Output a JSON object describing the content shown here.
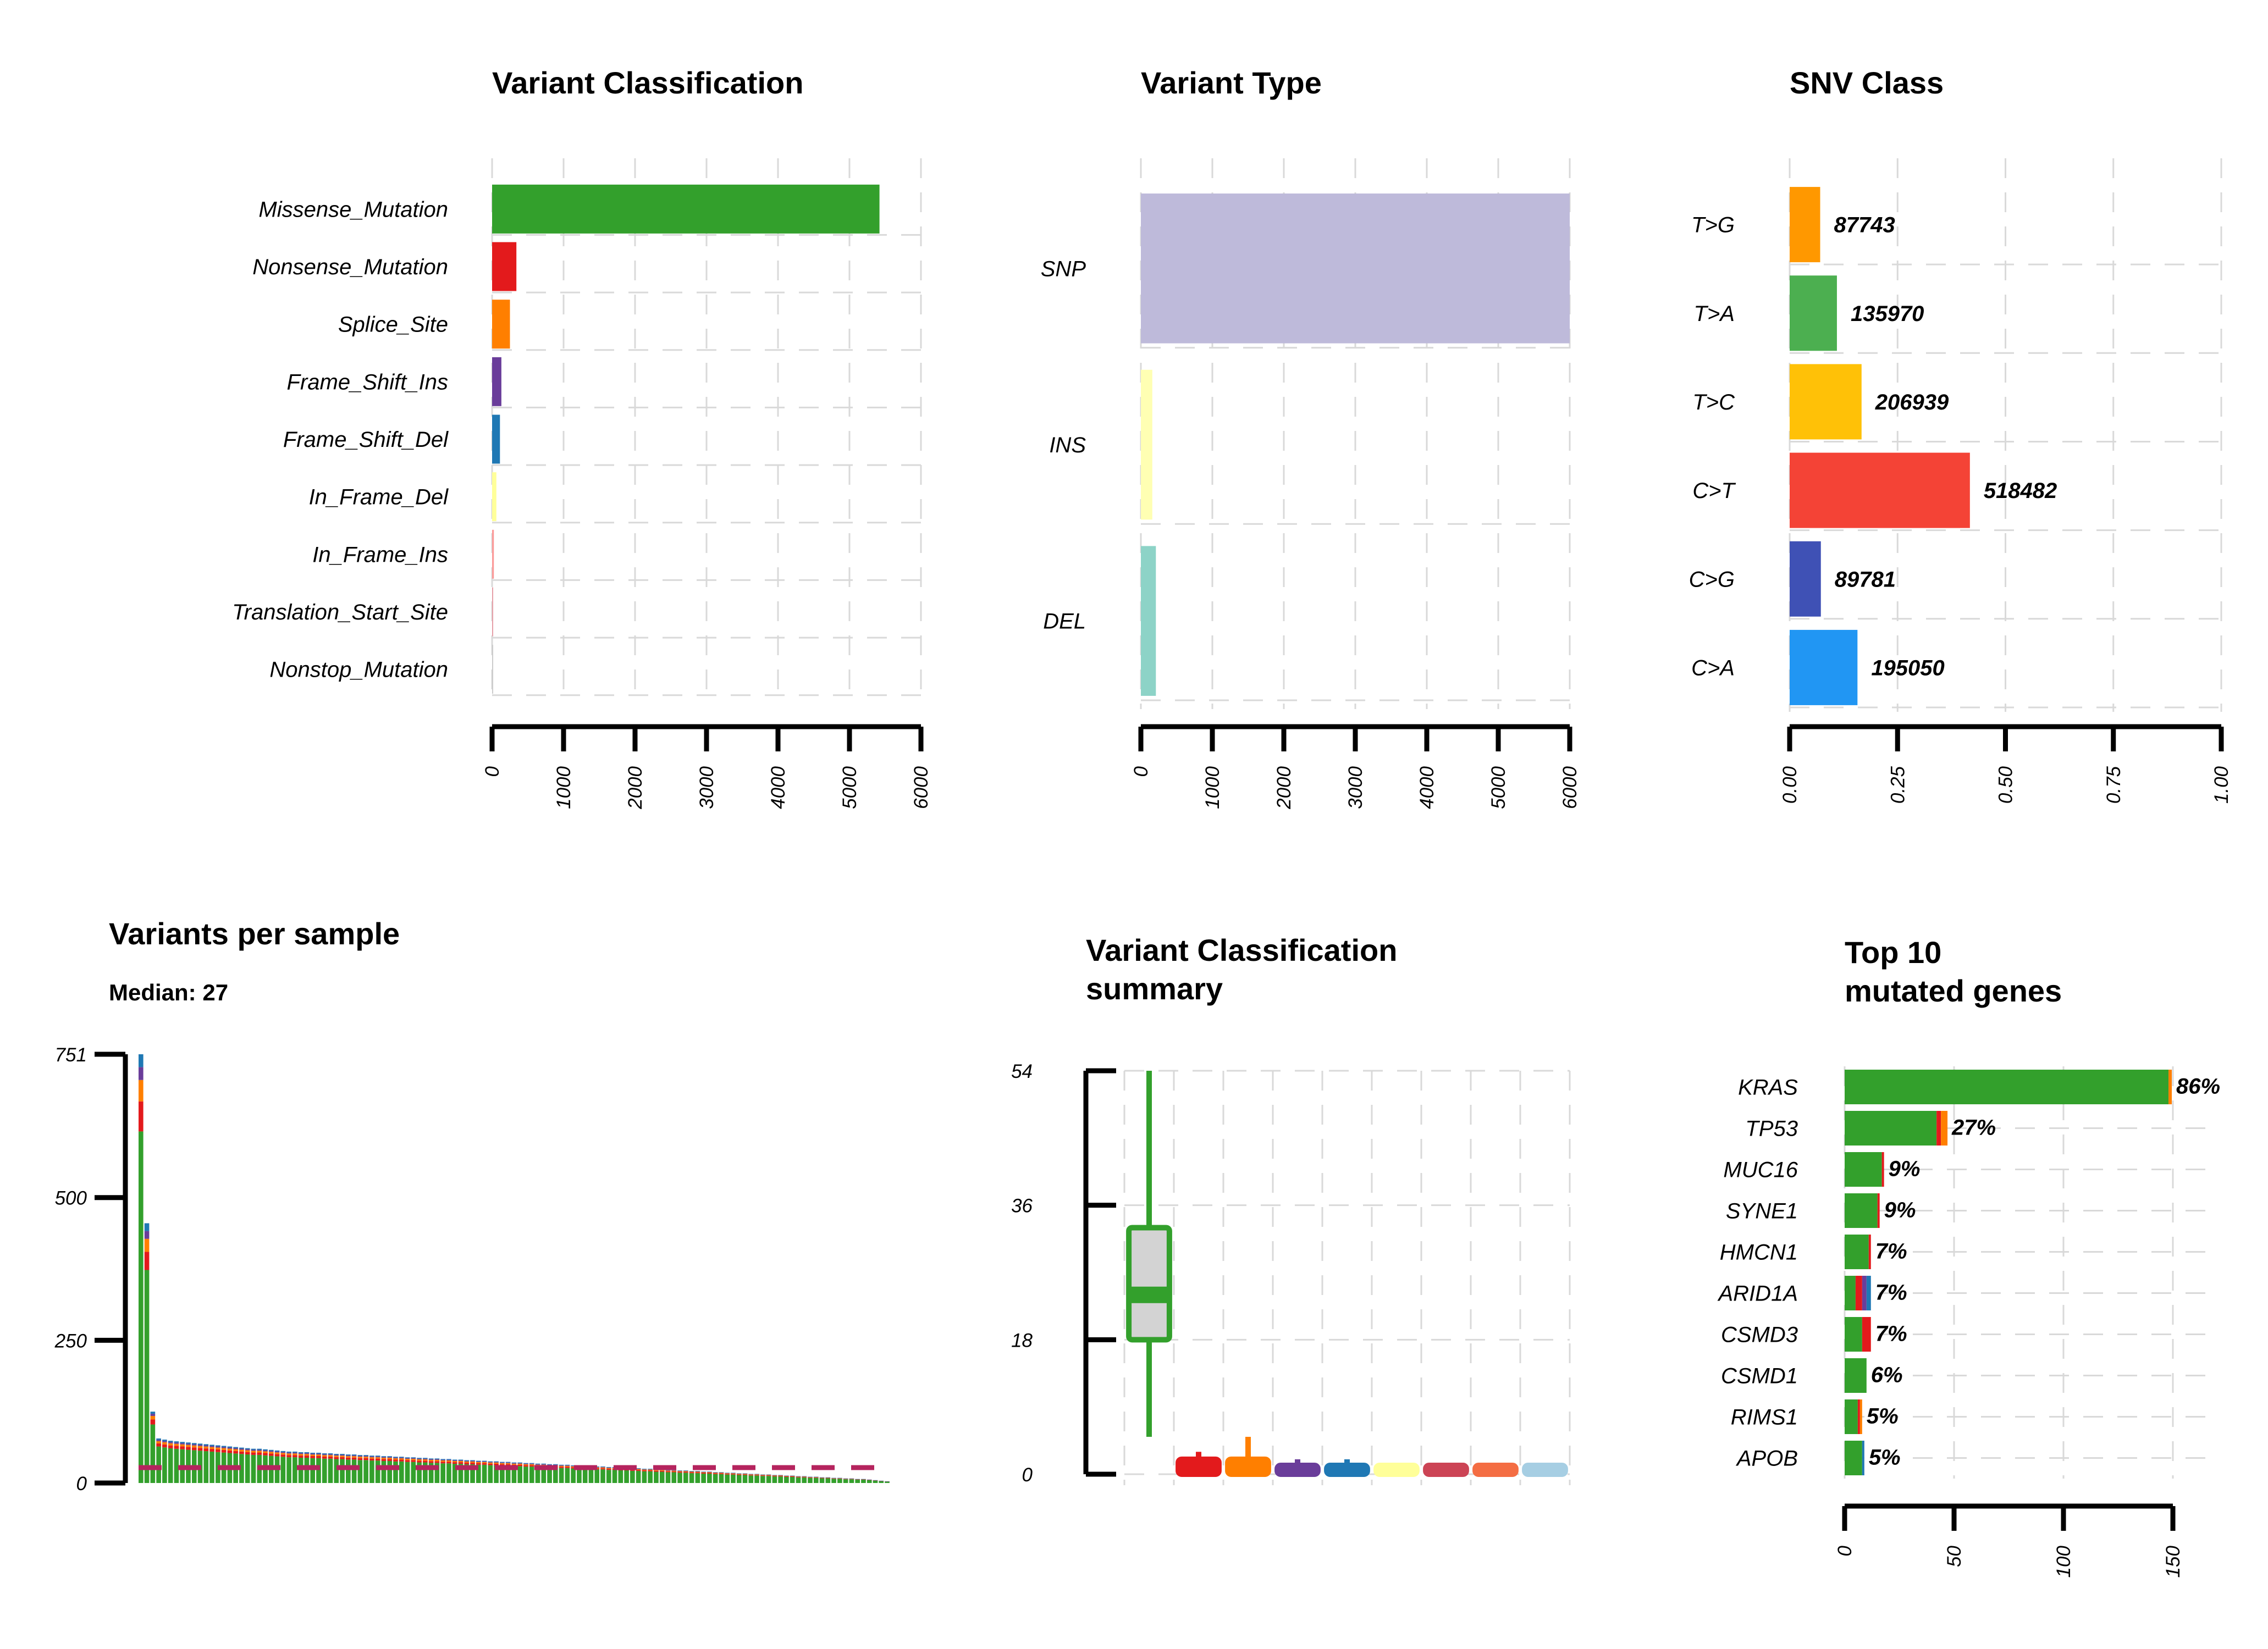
{
  "chart_data": [
    {
      "id": "vc",
      "type": "bar",
      "title": "Variant Classification",
      "orientation": "horizontal",
      "categories": [
        "Missense_Mutation",
        "Nonsense_Mutation",
        "Splice_Site",
        "Frame_Shift_Ins",
        "Frame_Shift_Del",
        "In_Frame_Del",
        "In_Frame_Ins",
        "Translation_Start_Site",
        "Nonstop_Mutation"
      ],
      "values": [
        5420,
        340,
        250,
        130,
        110,
        60,
        25,
        8,
        4
      ],
      "colors": [
        "#33a02c",
        "#e31a1c",
        "#ff7f00",
        "#6a3d9a",
        "#1f78b4",
        "#ffff99",
        "#fb9a99",
        "#e6a0a8",
        "#cccccc"
      ],
      "xticks": [
        0,
        1000,
        2000,
        3000,
        4000,
        5000,
        6000
      ],
      "xlim": [
        0,
        6000
      ],
      "grid": true
    },
    {
      "id": "vt",
      "type": "bar",
      "title": "Variant Type",
      "orientation": "horizontal",
      "categories": [
        "SNP",
        "INS",
        "DEL"
      ],
      "values": [
        6000,
        160,
        210
      ],
      "colors": [
        "#bebada",
        "#ffffb3",
        "#8dd3c7"
      ],
      "xticks": [
        0,
        1000,
        2000,
        3000,
        4000,
        5000,
        6000
      ],
      "xlim": [
        0,
        6000
      ],
      "grid": true
    },
    {
      "id": "snv",
      "type": "bar",
      "title": "SNV Class",
      "orientation": "horizontal",
      "categories": [
        "T>G",
        "T>A",
        "T>C",
        "C>T",
        "C>G",
        "C>A"
      ],
      "values": [
        0.0707,
        0.1095,
        0.1666,
        0.4176,
        0.0723,
        0.1571
      ],
      "labels": [
        "87743",
        "135970",
        "206939",
        "518482",
        "89781",
        "195050"
      ],
      "colors": [
        "#ff9800",
        "#4caf50",
        "#ffc107",
        "#f44336",
        "#3f51b5",
        "#2196f3"
      ],
      "xticks": [
        "0.00",
        "0.25",
        "0.50",
        "0.75",
        "1.00"
      ],
      "xlim": [
        0,
        1
      ],
      "grid": true
    },
    {
      "id": "vps",
      "type": "bar",
      "title": "Variants per sample",
      "subtitle": "Median: 27",
      "yticks": [
        0,
        250,
        500,
        751
      ],
      "ylim": [
        0,
        751
      ],
      "median": 27,
      "sample_totals": [
        751,
        455,
        125,
        78,
        76,
        74,
        73,
        72,
        71,
        70,
        69,
        68,
        67,
        66,
        65,
        64,
        63,
        62,
        61,
        60,
        60,
        59,
        58,
        57,
        56,
        55,
        55,
        54,
        54,
        53,
        53,
        52,
        52,
        51,
        51,
        50,
        50,
        49,
        49,
        48,
        48,
        47,
        47,
        46,
        46,
        45,
        45,
        44,
        44,
        43,
        43,
        42,
        42,
        41,
        41,
        40,
        40,
        39,
        39,
        38,
        38,
        37,
        37,
        36,
        36,
        35,
        35,
        34,
        34,
        33,
        33,
        32,
        32,
        31,
        31,
        30,
        30,
        29,
        29,
        28,
        28,
        27,
        27,
        26,
        26,
        25,
        25,
        24,
        24,
        23,
        23,
        22,
        22,
        21,
        21,
        20,
        20,
        19,
        19,
        18,
        18,
        17,
        17,
        16,
        16,
        15,
        15,
        14,
        14,
        13,
        13,
        12,
        12,
        11,
        11,
        10,
        10,
        9,
        9,
        8,
        8,
        7,
        7,
        6,
        5,
        4,
        3
      ],
      "series_colors": [
        "#33a02c",
        "#e31a1c",
        "#ff7f00",
        "#6a3d9a",
        "#1f78b4"
      ],
      "median_color": "#b5245e"
    },
    {
      "id": "vcs",
      "type": "box",
      "title": "Variant Classification",
      "title_line2": "summary",
      "yticks": [
        0,
        18,
        36,
        54
      ],
      "ylim": [
        0,
        54
      ],
      "boxes": [
        {
          "color": "#33a02c",
          "min": 5,
          "q1": 18,
          "median": 24,
          "q3": 33,
          "max": 54
        },
        {
          "color": "#e31a1c",
          "min": 0,
          "q1": 0,
          "median": 1,
          "q3": 2,
          "max": 3
        },
        {
          "color": "#ff7f00",
          "min": 0,
          "q1": 0,
          "median": 1,
          "q3": 2,
          "max": 5
        },
        {
          "color": "#6a3d9a",
          "min": 0,
          "q1": 0,
          "median": 0,
          "q3": 1,
          "max": 2
        },
        {
          "color": "#1f78b4",
          "min": 0,
          "q1": 0,
          "median": 0,
          "q3": 1,
          "max": 2
        },
        {
          "color": "#ffff99",
          "min": 0,
          "q1": 0,
          "median": 0,
          "q3": 1,
          "max": 1
        },
        {
          "color": "#cc4455",
          "min": 0,
          "q1": 0,
          "median": 0,
          "q3": 1,
          "max": 1
        },
        {
          "color": "#f46d43",
          "min": 0,
          "q1": 0,
          "median": 0,
          "q3": 1,
          "max": 1
        },
        {
          "color": "#a6cee3",
          "min": 0,
          "q1": 0,
          "median": 0,
          "q3": 1,
          "max": 1
        }
      ]
    },
    {
      "id": "top",
      "type": "bar",
      "title": "Top 10",
      "title_line2": "mutated genes",
      "orientation": "horizontal",
      "categories": [
        "KRAS",
        "TP53",
        "MUC16",
        "SYNE1",
        "HMCN1",
        "ARID1A",
        "CSMD3",
        "CSMD1",
        "RIMS1",
        "APOB"
      ],
      "percent_labels": [
        "86%",
        "27%",
        "9%",
        "9%",
        "7%",
        "7%",
        "7%",
        "6%",
        "5%",
        "5%"
      ],
      "segments": [
        [
          {
            "color": "#33a02c",
            "value": 148
          },
          {
            "color": "#ff7f00",
            "value": 1.5
          }
        ],
        [
          {
            "color": "#33a02c",
            "value": 42
          },
          {
            "color": "#e31a1c",
            "value": 2
          },
          {
            "color": "#ff7f00",
            "value": 3
          }
        ],
        [
          {
            "color": "#33a02c",
            "value": 17
          },
          {
            "color": "#e31a1c",
            "value": 1
          }
        ],
        [
          {
            "color": "#33a02c",
            "value": 15
          },
          {
            "color": "#e31a1c",
            "value": 1
          }
        ],
        [
          {
            "color": "#33a02c",
            "value": 11
          },
          {
            "color": "#e31a1c",
            "value": 1
          }
        ],
        [
          {
            "color": "#33a02c",
            "value": 5
          },
          {
            "color": "#e31a1c",
            "value": 3
          },
          {
            "color": "#6a3d9a",
            "value": 2
          },
          {
            "color": "#1f78b4",
            "value": 2
          }
        ],
        [
          {
            "color": "#33a02c",
            "value": 8
          },
          {
            "color": "#e31a1c",
            "value": 4
          }
        ],
        [
          {
            "color": "#33a02c",
            "value": 10
          }
        ],
        [
          {
            "color": "#33a02c",
            "value": 6
          },
          {
            "color": "#e31a1c",
            "value": 1
          },
          {
            "color": "#ff7f00",
            "value": 1
          }
        ],
        [
          {
            "color": "#33a02c",
            "value": 8
          },
          {
            "color": "#1f78b4",
            "value": 1
          }
        ]
      ],
      "xticks": [
        0,
        50,
        100,
        150
      ],
      "xlim": [
        0,
        150
      ],
      "grid": true
    }
  ]
}
